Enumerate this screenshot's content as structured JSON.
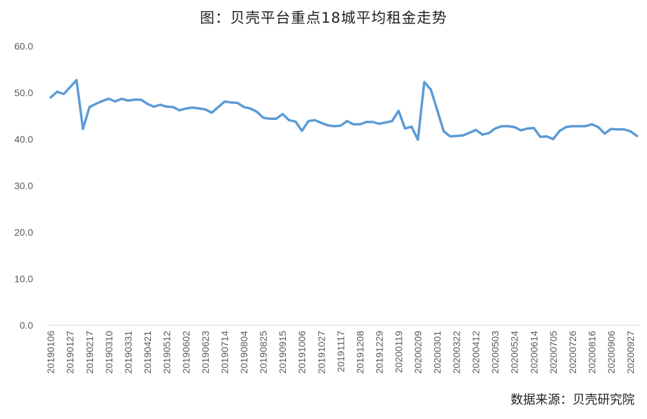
{
  "chart_data": {
    "type": "line",
    "title": "图：贝壳平台重点18城平均租金走势",
    "source": "数据来源：贝壳研究院",
    "xlabel": "",
    "ylabel": "",
    "ylim": [
      0,
      60
    ],
    "yticks": [
      "0.0",
      "10.0",
      "20.0",
      "30.0",
      "40.0",
      "50.0",
      "60.0"
    ],
    "grid": false,
    "legend": "none",
    "line_color": "#5B9BD5",
    "x_tick_labels": [
      "20190106",
      "20190127",
      "20190217",
      "20190310",
      "20190331",
      "20190421",
      "20190512",
      "20190602",
      "20190623",
      "20190714",
      "20190804",
      "20190825",
      "20190915",
      "20191006",
      "20191027",
      "20191117",
      "20191208",
      "20191229",
      "20200119",
      "20200209",
      "20200301",
      "20200322",
      "20200412",
      "20200503",
      "20200524",
      "20200614",
      "20200705",
      "20200726",
      "20200816",
      "20200906",
      "20200927"
    ],
    "x": [
      "20190106",
      "20190113",
      "20190120",
      "20190127",
      "20190203",
      "20190210",
      "20190217",
      "20190224",
      "20190303",
      "20190310",
      "20190317",
      "20190324",
      "20190331",
      "20190407",
      "20190414",
      "20190421",
      "20190428",
      "20190505",
      "20190512",
      "20190519",
      "20190526",
      "20190602",
      "20190609",
      "20190616",
      "20190623",
      "20190630",
      "20190707",
      "20190714",
      "20190721",
      "20190728",
      "20190804",
      "20190811",
      "20190818",
      "20190825",
      "20190901",
      "20190908",
      "20190915",
      "20190922",
      "20190929",
      "20191006",
      "20191013",
      "20191020",
      "20191027",
      "20191103",
      "20191110",
      "20191117",
      "20191124",
      "20191201",
      "20191208",
      "20191215",
      "20191222",
      "20191229",
      "20200105",
      "20200112",
      "20200119",
      "20200126",
      "20200202",
      "20200209",
      "20200216",
      "20200223",
      "20200301",
      "20200308",
      "20200315",
      "20200322",
      "20200329",
      "20200405",
      "20200412",
      "20200419",
      "20200426",
      "20200503",
      "20200510",
      "20200517",
      "20200524",
      "20200531",
      "20200607",
      "20200614",
      "20200621",
      "20200628",
      "20200705",
      "20200712",
      "20200719",
      "20200726",
      "20200802",
      "20200809",
      "20200816",
      "20200823",
      "20200830",
      "20200906",
      "20200913",
      "20200920",
      "20200927",
      "20201004"
    ],
    "series": [
      {
        "values": [
          49.0,
          50.2,
          49.7,
          51.2,
          52.7,
          42.2,
          46.9,
          47.6,
          48.2,
          48.7,
          48.1,
          48.7,
          48.3,
          48.5,
          48.5,
          47.6,
          47.0,
          47.4,
          47.0,
          46.9,
          46.2,
          46.6,
          46.8,
          46.6,
          46.4,
          45.7,
          46.9,
          48.1,
          47.9,
          47.8,
          46.9,
          46.6,
          45.9,
          44.6,
          44.4,
          44.4,
          45.4,
          44.1,
          43.8,
          41.8,
          43.9,
          44.1,
          43.5,
          43.0,
          42.8,
          42.9,
          43.9,
          43.2,
          43.2,
          43.7,
          43.7,
          43.3,
          43.6,
          43.9,
          46.1,
          42.3,
          42.7,
          39.9,
          52.3,
          50.7,
          46.3,
          41.7,
          40.6,
          40.7,
          40.8,
          41.4,
          42.0,
          41.0,
          41.3,
          42.3,
          42.8,
          42.8,
          42.6,
          41.9,
          42.3,
          42.4,
          40.5,
          40.6,
          40.0,
          41.8,
          42.6,
          42.8,
          42.8,
          42.8,
          43.2,
          42.6,
          41.2,
          42.2,
          42.1,
          42.1,
          41.7,
          40.7
        ]
      }
    ]
  }
}
